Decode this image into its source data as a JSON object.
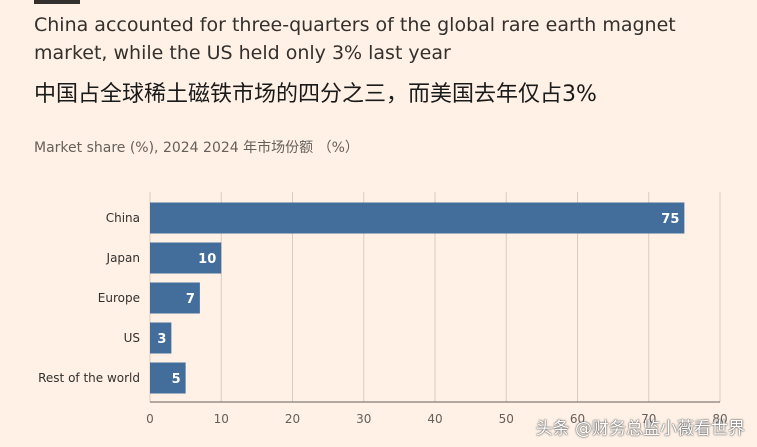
{
  "title_en": "China accounted for three-quarters of the global rare earth magnet market, while the US held only 3% last year",
  "title_zh": "中国占全球稀土磁铁市场的四分之三，而美国去年仅占3%",
  "subtitle": "Market share (%), 2024  2024 年市场份额 （%）",
  "watermark": "头条 @财务总监小薇看世界",
  "colors": {
    "background": "#fff1e5",
    "bar": "#436e9c",
    "grid": "#d9ccc1",
    "text": "#33302e"
  },
  "chart_data": {
    "type": "bar",
    "orientation": "horizontal",
    "categories": [
      "China",
      "Japan",
      "Europe",
      "US",
      "Rest of the world"
    ],
    "values": [
      75,
      10,
      7,
      3,
      5
    ],
    "xlim": [
      0,
      80
    ],
    "xticks": [
      0,
      10,
      20,
      30,
      40,
      50,
      60,
      70,
      80
    ],
    "grid": true,
    "data_labels": true
  }
}
